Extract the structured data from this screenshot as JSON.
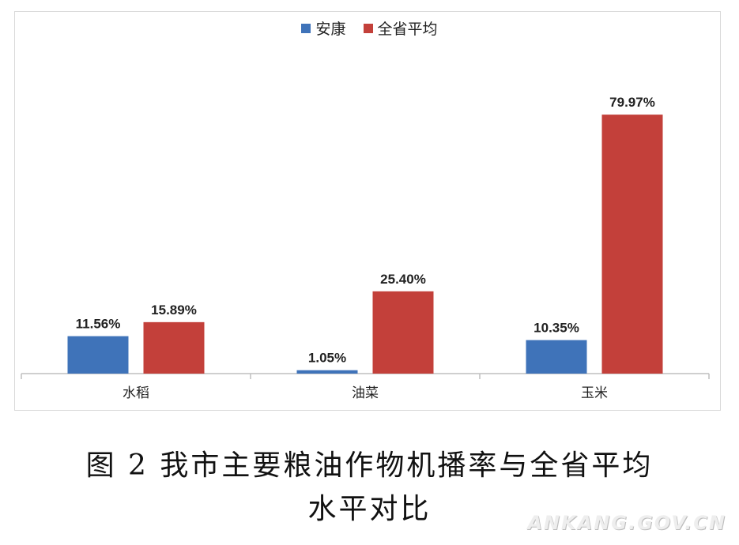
{
  "chart_data": {
    "type": "bar",
    "categories": [
      "水稻",
      "油菜",
      "玉米"
    ],
    "series": [
      {
        "name": "安康",
        "values": [
          11.56,
          1.05,
          10.35
        ],
        "labels": [
          "11.56%",
          "1.05%",
          "10.35%"
        ],
        "color": "#3f73b9"
      },
      {
        "name": "全省平均",
        "values": [
          15.89,
          25.4,
          79.97
        ],
        "labels": [
          "15.89%",
          "25.40%",
          "79.97%"
        ],
        "color": "#c3403a"
      }
    ],
    "ylim": [
      0,
      80
    ],
    "grid": false,
    "legend_position": "top-center"
  },
  "caption": {
    "line1": "图 2  我市主要粮油作物机播率与全省平均",
    "line2": "水平对比"
  },
  "watermark": "ANKANG.GOV.CN"
}
